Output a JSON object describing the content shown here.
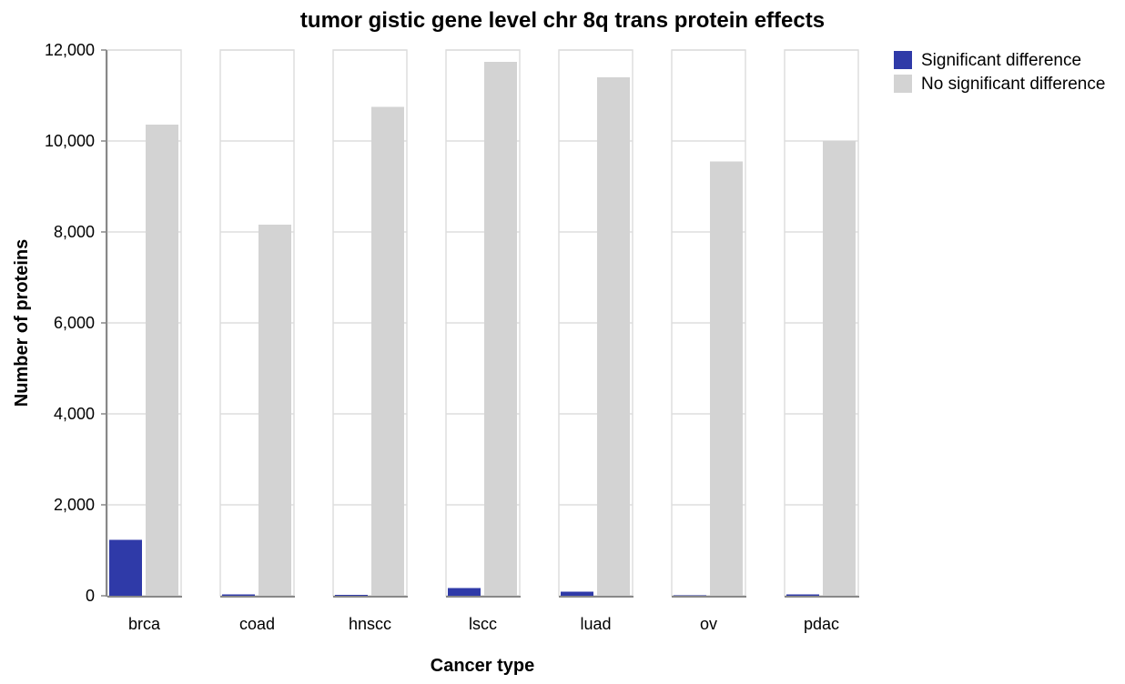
{
  "chart_data": {
    "type": "bar",
    "title": "tumor gistic gene level chr 8q trans protein effects",
    "xlabel": "Cancer type",
    "ylabel": "Number of proteins",
    "ylim": [
      0,
      12000
    ],
    "yticks": [
      0,
      2000,
      4000,
      6000,
      8000,
      10000,
      12000
    ],
    "ytick_labels": [
      "0",
      "2,000",
      "4,000",
      "6,000",
      "8,000",
      "10,000",
      "12,000"
    ],
    "categories": [
      "brca",
      "coad",
      "hnscc",
      "lscc",
      "luad",
      "ov",
      "pdac"
    ],
    "series": [
      {
        "name": "Significant difference",
        "color": "#2f3aa8",
        "values": [
          1230,
          30,
          20,
          170,
          90,
          10,
          30
        ]
      },
      {
        "name": "No significant difference",
        "color": "#d3d3d3",
        "values": [
          10360,
          8160,
          10750,
          11740,
          11400,
          9550,
          10000
        ]
      }
    ],
    "grid": true,
    "legend_position": "top-right"
  }
}
